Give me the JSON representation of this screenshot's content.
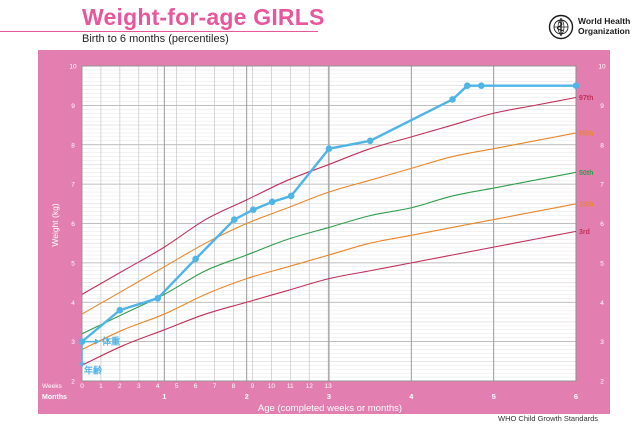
{
  "header": {
    "title": "Weight-for-age GIRLS",
    "subtitle": "Birth to 6 months (percentiles)"
  },
  "org": {
    "name_line1": "World Health",
    "name_line2": "Organization",
    "logo_icon": "who-emblem-icon"
  },
  "footer": {
    "note": "WHO Child Growth Standards"
  },
  "colors": {
    "frame": "#e37fb0",
    "title": "#e8579b",
    "p3_p97": "#c0305a",
    "p15_p85": "#e8862a",
    "p50": "#2e9e4b",
    "child": "#4fb4e6"
  },
  "chart_data": {
    "type": "line",
    "title": "Weight-for-age GIRLS",
    "subtitle": "Birth to 6 months (percentiles)",
    "xlabel": "Age (completed weeks or months)",
    "ylabel": "Weight (kg)",
    "xlim": [
      0,
      6
    ],
    "ylim": [
      2,
      10
    ],
    "row_label_weeks": "Weeks",
    "row_label_months": "Months",
    "week_ticks": [
      "0",
      "1",
      "2",
      "3",
      "4",
      "5",
      "6",
      "7",
      "8",
      "9",
      "10",
      "11",
      "12",
      "13"
    ],
    "month_ticks": [
      "1",
      "2",
      "3",
      "4",
      "5",
      "6"
    ],
    "month_tick_positions": [
      1,
      2,
      3,
      4,
      5,
      6
    ],
    "y_ticks": [
      2,
      3,
      4,
      5,
      6,
      7,
      8,
      9,
      10
    ],
    "grid": true,
    "x_units": "months",
    "series": [
      {
        "name": "97th",
        "x": [
          0,
          0.5,
          1,
          1.5,
          2,
          2.5,
          3,
          3.5,
          4,
          4.5,
          5,
          5.5,
          6
        ],
        "y": [
          4.2,
          4.8,
          5.4,
          6.1,
          6.6,
          7.1,
          7.5,
          7.9,
          8.2,
          8.5,
          8.8,
          9.0,
          9.2
        ]
      },
      {
        "name": "85th",
        "x": [
          0,
          0.5,
          1,
          1.5,
          2,
          2.5,
          3,
          3.5,
          4,
          4.5,
          5,
          5.5,
          6
        ],
        "y": [
          3.7,
          4.3,
          4.9,
          5.5,
          6.0,
          6.4,
          6.8,
          7.1,
          7.4,
          7.7,
          7.9,
          8.1,
          8.3
        ]
      },
      {
        "name": "50th",
        "x": [
          0,
          0.5,
          1,
          1.5,
          2,
          2.5,
          3,
          3.5,
          4,
          4.5,
          5,
          5.5,
          6
        ],
        "y": [
          3.2,
          3.7,
          4.2,
          4.8,
          5.2,
          5.6,
          5.9,
          6.2,
          6.4,
          6.7,
          6.9,
          7.1,
          7.3
        ]
      },
      {
        "name": "15th",
        "x": [
          0,
          0.5,
          1,
          1.5,
          2,
          2.5,
          3,
          3.5,
          4,
          4.5,
          5,
          5.5,
          6
        ],
        "y": [
          2.8,
          3.3,
          3.7,
          4.2,
          4.6,
          4.9,
          5.2,
          5.5,
          5.7,
          5.9,
          6.1,
          6.3,
          6.5
        ]
      },
      {
        "name": "3rd",
        "x": [
          0,
          0.5,
          1,
          1.5,
          2,
          2.5,
          3,
          3.5,
          4,
          4.5,
          5,
          5.5,
          6
        ],
        "y": [
          2.4,
          2.9,
          3.3,
          3.7,
          4.0,
          4.3,
          4.6,
          4.8,
          5.0,
          5.2,
          5.4,
          5.6,
          5.8
        ]
      }
    ],
    "child_measurements": {
      "x": [
        0,
        0.46,
        0.92,
        1.38,
        1.85,
        2.08,
        2.31,
        2.54,
        3.0,
        3.5,
        4.5,
        4.68,
        4.85,
        6.0
      ],
      "y": [
        3.0,
        3.8,
        4.1,
        5.1,
        6.1,
        6.35,
        6.55,
        6.7,
        7.9,
        8.1,
        9.15,
        9.5,
        9.5,
        9.5
      ]
    },
    "annotations": [
      {
        "text": "体重",
        "meaning": "weight"
      },
      {
        "text": "年齢",
        "meaning": "age"
      }
    ]
  }
}
